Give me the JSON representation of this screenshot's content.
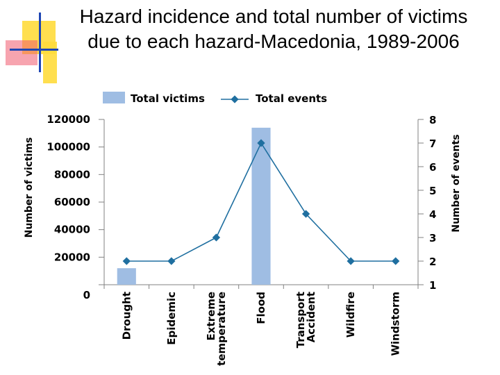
{
  "slide": {
    "title": "Hazard incidence and total number of victims\ndue to each hazard-Macedonia, 1989-2006",
    "colors": {
      "bar": "#9fbde3",
      "line": "#1f6fa0",
      "axis": "#808080",
      "deco_yellow": "#ffdc3c",
      "deco_red": "#f05a6e",
      "deco_blue": "#1e46b4"
    }
  },
  "chart_data": {
    "type": "bar+line",
    "categories": [
      "Drought",
      "Epidemic",
      "Extreme\ntemperature",
      "Flood",
      "Transport\nAccident",
      "Wildfire",
      "Windstorm"
    ],
    "series": [
      {
        "name": "Total victims",
        "type": "bar",
        "axis": "left",
        "values": [
          12000,
          0,
          0,
          114000,
          0,
          0,
          0
        ]
      },
      {
        "name": "Total events",
        "type": "line",
        "axis": "right",
        "values": [
          2,
          2,
          3,
          7,
          4,
          2,
          2
        ]
      }
    ],
    "ylabel": "Number of victims",
    "y2label": "Number of events",
    "ylim": [
      0,
      120000
    ],
    "yticks": [
      0,
      20000,
      40000,
      60000,
      80000,
      100000,
      120000
    ],
    "y2lim": [
      1,
      8
    ],
    "y2ticks": [
      1,
      2,
      3,
      4,
      5,
      6,
      7,
      8
    ],
    "legend": "top-center",
    "grid": false
  }
}
